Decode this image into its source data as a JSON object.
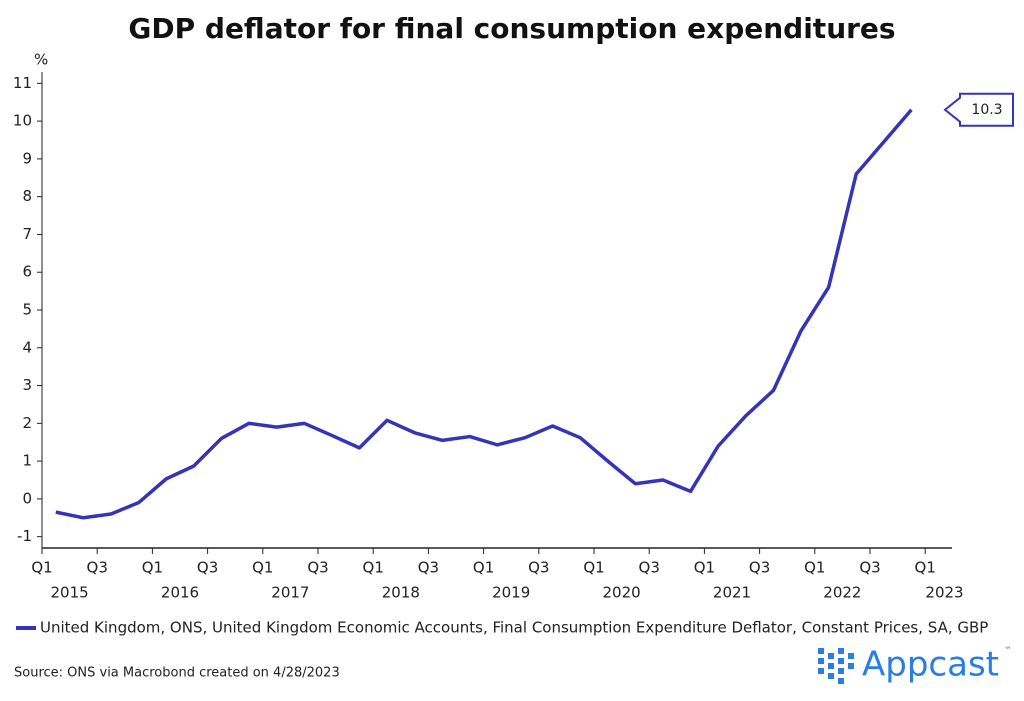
{
  "chart_data": {
    "type": "line",
    "title": "GDP deflator for final consumption expenditures",
    "y_unit": "%",
    "series": [
      {
        "name": "United Kingdom, ONS, United Kingdom Economic Accounts, Final Consumption Expenditure Deflator, Constant Prices, SA, GBP",
        "color": "#3434b8",
        "values": [
          -0.35,
          -0.5,
          -0.4,
          -0.1,
          0.53,
          0.87,
          1.6,
          2.0,
          1.9,
          2.0,
          1.68,
          1.35,
          2.08,
          1.75,
          1.55,
          1.65,
          1.43,
          1.62,
          1.93,
          1.62,
          1.0,
          0.4,
          0.5,
          0.2,
          1.4,
          2.2,
          2.87,
          4.45,
          5.6,
          8.6,
          9.45,
          10.3
        ]
      }
    ],
    "x_tick_labels": [
      "Q1",
      "Q3",
      "Q1",
      "Q3",
      "Q1",
      "Q3",
      "Q1",
      "Q3",
      "Q1",
      "Q3",
      "Q1",
      "Q3",
      "Q1",
      "Q3",
      "Q1",
      "Q3",
      "Q1"
    ],
    "x_year_labels": [
      "2015",
      "2016",
      "2017",
      "2018",
      "2019",
      "2020",
      "2021",
      "2022",
      "2023"
    ],
    "ylim": [
      -1.3,
      11.3
    ],
    "yticks": [
      -1,
      0,
      1,
      2,
      3,
      4,
      5,
      6,
      7,
      8,
      9,
      10,
      11
    ],
    "source": "Source: ONS via Macrobond created on 4/28/2023",
    "logo": "Appcast",
    "logo_mark": "™"
  }
}
